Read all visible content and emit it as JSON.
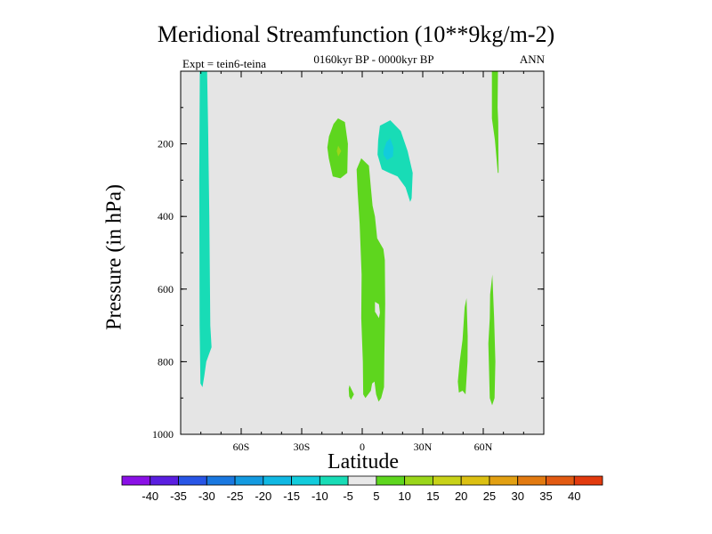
{
  "chart_data": {
    "type": "contour",
    "title": "Meridional Streamfunction (10**9kg/m-2)",
    "left_string": "Expt = tein6-teina",
    "center_string": "0160kyr BP - 0000kyr BP",
    "right_string": "ANN",
    "xlabel": "Latitude",
    "ylabel": "Pressure (in hPa)",
    "xlim": [
      -90,
      90
    ],
    "ylim": [
      1000,
      0
    ],
    "x_ticks": [
      {
        "value": -60,
        "label": "60S"
      },
      {
        "value": -30,
        "label": "30S"
      },
      {
        "value": 0,
        "label": "0"
      },
      {
        "value": 30,
        "label": "30N"
      },
      {
        "value": 60,
        "label": "60N"
      }
    ],
    "y_ticks": [
      {
        "value": 200,
        "label": "200"
      },
      {
        "value": 400,
        "label": "400"
      },
      {
        "value": 600,
        "label": "600"
      },
      {
        "value": 800,
        "label": "800"
      },
      {
        "value": 1000,
        "label": "1000"
      }
    ],
    "background_color": "#e5e5e5",
    "colorbar": {
      "levels": [
        -40,
        -35,
        -30,
        -25,
        -20,
        -15,
        -10,
        -5,
        5,
        10,
        15,
        20,
        25,
        30,
        35,
        40
      ],
      "labels": [
        "-40",
        "-35",
        "-30",
        "-25",
        "-20",
        "-15",
        "-10",
        "-5",
        "5",
        "10",
        "15",
        "20",
        "25",
        "30",
        "35",
        "40"
      ],
      "colors": [
        "#8a10e6",
        "#5a1ee0",
        "#2855e6",
        "#1a78e0",
        "#139ae0",
        "#10b8e3",
        "#12ccdc",
        "#18dcb6",
        "#e8e8e8",
        "#5ed61e",
        "#9ad61a",
        "#c8d218",
        "#dcc012",
        "#e2a012",
        "#e27a10",
        "#e25a12",
        "#e23a0e"
      ]
    },
    "regions": [
      {
        "name": "sh-polar-cell",
        "sign": "negative",
        "color": "#18dcb6",
        "points": [
          [
            -80.5,
            0
          ],
          [
            -76.9,
            0
          ],
          [
            -76.4,
            150
          ],
          [
            -75.8,
            400
          ],
          [
            -75.3,
            700
          ],
          [
            -74.7,
            760
          ],
          [
            -77.3,
            800
          ],
          [
            -78.3,
            840
          ],
          [
            -79.2,
            870
          ],
          [
            -80.2,
            860
          ],
          [
            -80.6,
            700
          ],
          [
            -80.8,
            300
          ]
        ]
      },
      {
        "name": "sh-upper-positive",
        "sign": "positive",
        "color": "#5ed61e",
        "points": [
          [
            -16.5,
            180
          ],
          [
            -14.2,
            145
          ],
          [
            -12,
            130
          ],
          [
            -8.6,
            140
          ],
          [
            -7.1,
            200
          ],
          [
            -7.4,
            280
          ],
          [
            -10.8,
            295
          ],
          [
            -14.6,
            290
          ],
          [
            -16.6,
            240
          ],
          [
            -17.3,
            210
          ]
        ]
      },
      {
        "name": "sh-upper-positive-core",
        "sign": "positive",
        "color": "#9ad61a",
        "points": [
          [
            -12.6,
            220
          ],
          [
            -11.9,
            205
          ],
          [
            -10.4,
            220
          ],
          [
            -11.9,
            235
          ]
        ]
      },
      {
        "name": "nh-upper-negative",
        "sign": "negative",
        "color": "#18dcb6",
        "points": [
          [
            7.9,
            190
          ],
          [
            8.8,
            150
          ],
          [
            13.9,
            135
          ],
          [
            19.1,
            165
          ],
          [
            22.5,
            220
          ],
          [
            25,
            280
          ],
          [
            24.5,
            350
          ],
          [
            23.8,
            360
          ],
          [
            21.5,
            320
          ],
          [
            17.5,
            290
          ],
          [
            13.4,
            280
          ],
          [
            9.7,
            270
          ],
          [
            7.6,
            230
          ]
        ]
      },
      {
        "name": "nh-upper-negative-core",
        "sign": "negative",
        "color": "#12ccdc",
        "points": [
          [
            10.5,
            220
          ],
          [
            12,
            195
          ],
          [
            13.9,
            185
          ],
          [
            15.5,
            210
          ],
          [
            15.2,
            235
          ],
          [
            12.3,
            245
          ],
          [
            10.5,
            230
          ]
        ]
      },
      {
        "name": "tropical-positive",
        "sign": "positive",
        "color": "#5ed61e",
        "points": [
          [
            -2.8,
            270
          ],
          [
            -0.5,
            240
          ],
          [
            3.3,
            260
          ],
          [
            4.3,
            320
          ],
          [
            5.1,
            370
          ],
          [
            6.3,
            400
          ],
          [
            7.4,
            460
          ],
          [
            10.5,
            490
          ],
          [
            11.2,
            520
          ],
          [
            11.4,
            640
          ],
          [
            11,
            780
          ],
          [
            10.8,
            870
          ],
          [
            9.4,
            900
          ],
          [
            8.1,
            910
          ],
          [
            6.9,
            890
          ],
          [
            6.1,
            855
          ],
          [
            4.9,
            860
          ],
          [
            4.3,
            880
          ],
          [
            1.6,
            900
          ],
          [
            0.5,
            890
          ],
          [
            0.3,
            800
          ],
          [
            -0.5,
            680
          ],
          [
            -0.3,
            560
          ],
          [
            -1.3,
            420
          ],
          [
            -2.3,
            330
          ]
        ]
      },
      {
        "name": "tropical-gap",
        "sign": "zero",
        "color": "#e5e5e5",
        "points": [
          [
            6.3,
            635
          ],
          [
            8.3,
            642
          ],
          [
            8.8,
            665
          ],
          [
            8.3,
            680
          ],
          [
            6.3,
            662
          ]
        ]
      },
      {
        "name": "small-positive-near-eq",
        "sign": "positive",
        "color": "#5ed61e",
        "points": [
          [
            -6.7,
            875
          ],
          [
            -6.3,
            865
          ],
          [
            -4.1,
            890
          ],
          [
            -5.6,
            905
          ],
          [
            -6.5,
            895
          ]
        ]
      },
      {
        "name": "nh-midlat-positive",
        "sign": "positive",
        "color": "#5ed61e",
        "points": [
          [
            49.7,
            740
          ],
          [
            50.8,
            650
          ],
          [
            51.7,
            625
          ],
          [
            52.3,
            730
          ],
          [
            52.2,
            800
          ],
          [
            51.2,
            890
          ],
          [
            49.7,
            880
          ],
          [
            47.9,
            885
          ],
          [
            47.4,
            855
          ],
          [
            48.3,
            800
          ]
        ]
      },
      {
        "name": "nh-highlat-positive",
        "sign": "positive",
        "color": "#5ed61e",
        "points": [
          [
            63.2,
            680
          ],
          [
            63.4,
            615
          ],
          [
            64.5,
            560
          ],
          [
            65.4,
            680
          ],
          [
            66,
            800
          ],
          [
            65.6,
            900
          ],
          [
            64.4,
            920
          ],
          [
            63.2,
            900
          ],
          [
            62.5,
            750
          ]
        ]
      },
      {
        "name": "nh-polar-upper-positive",
        "sign": "positive",
        "color": "#5ed61e",
        "points": [
          [
            64.3,
            0
          ],
          [
            67.3,
            0
          ],
          [
            67.1,
            100
          ],
          [
            67.4,
            140
          ],
          [
            67.6,
            280
          ],
          [
            67.2,
            280
          ],
          [
            65.8,
            190
          ],
          [
            64.3,
            130
          ]
        ]
      }
    ]
  }
}
